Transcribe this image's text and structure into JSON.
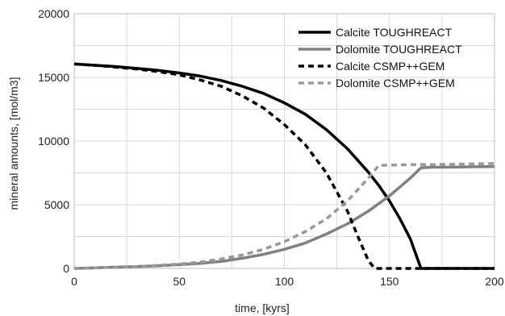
{
  "chart_data": {
    "type": "line",
    "title": "",
    "xlabel": "time, [kyrs]",
    "ylabel": "mineral amounts, [mol/m3]",
    "xlim": [
      0,
      200
    ],
    "ylim": [
      0,
      20000
    ],
    "x_ticks": [
      "0",
      "50",
      "100",
      "150",
      "200"
    ],
    "y_ticks": [
      "0",
      "5000",
      "10000",
      "15000",
      "20000"
    ],
    "grid": true,
    "legend_position": "top-right",
    "series": [
      {
        "name": "Calcite TOUGHREACT",
        "color": "#000000",
        "dash": "solid",
        "x": [
          0,
          10,
          20,
          30,
          40,
          50,
          60,
          70,
          80,
          90,
          100,
          110,
          120,
          130,
          140,
          145,
          150,
          155,
          160,
          165,
          170,
          180,
          190,
          200
        ],
        "y": [
          16050,
          15950,
          15850,
          15700,
          15550,
          15350,
          15100,
          14750,
          14300,
          13750,
          13000,
          12100,
          10900,
          9400,
          7550,
          6500,
          5300,
          3900,
          2300,
          0,
          0,
          0,
          0,
          0
        ]
      },
      {
        "name": "Dolomite TOUGHREACT",
        "color": "#808080",
        "dash": "solid",
        "x": [
          0,
          10,
          20,
          30,
          40,
          50,
          60,
          70,
          80,
          90,
          100,
          110,
          120,
          130,
          140,
          150,
          160,
          165,
          170,
          180,
          190,
          200
        ],
        "y": [
          0,
          50,
          100,
          150,
          200,
          300,
          400,
          550,
          800,
          1100,
          1500,
          2000,
          2700,
          3500,
          4500,
          5700,
          7100,
          7900,
          7950,
          7950,
          7980,
          8000
        ]
      },
      {
        "name": "Calcite CSMP++GEM",
        "color": "#000000",
        "dash": "dashed",
        "x": [
          0,
          10,
          20,
          30,
          40,
          50,
          60,
          70,
          80,
          90,
          100,
          110,
          120,
          130,
          135,
          140,
          143,
          145,
          150,
          160,
          170,
          180,
          190,
          200
        ],
        "y": [
          16050,
          15950,
          15800,
          15650,
          15450,
          15200,
          14800,
          14300,
          13550,
          12600,
          11300,
          9700,
          7500,
          4500,
          2500,
          600,
          0,
          0,
          0,
          0,
          0,
          0,
          0,
          0
        ]
      },
      {
        "name": "Dolomite CSMP++GEM",
        "color": "#999999",
        "dash": "dashed",
        "x": [
          0,
          10,
          20,
          30,
          40,
          50,
          60,
          70,
          80,
          90,
          100,
          110,
          120,
          130,
          140,
          145,
          150,
          160,
          170,
          180,
          190,
          200
        ],
        "y": [
          0,
          50,
          100,
          150,
          250,
          350,
          500,
          750,
          1050,
          1500,
          2100,
          2900,
          3900,
          5300,
          7100,
          8100,
          8100,
          8150,
          8150,
          8180,
          8200,
          8250
        ]
      }
    ]
  }
}
